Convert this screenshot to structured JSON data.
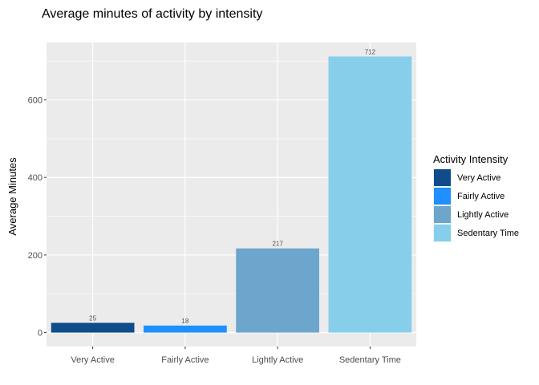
{
  "chart_data": {
    "type": "bar",
    "title": "Average minutes of activity by intensity",
    "xlabel": "",
    "ylabel": "Average Minutes",
    "categories": [
      "Very Active",
      "Fairly Active",
      "Lightly Active",
      "Sedentary Time"
    ],
    "values": [
      25,
      18,
      217,
      712
    ],
    "data_labels": [
      "25",
      "18",
      "217",
      "712"
    ],
    "colors": [
      "#0E4C8A",
      "#1E90FF",
      "#6CA6CD",
      "#87CEEB"
    ],
    "ylim": [
      -36,
      748
    ],
    "yticks": [
      0,
      200,
      400,
      600
    ],
    "ytick_labels": [
      "0",
      "200",
      "400",
      "600"
    ],
    "grid": true,
    "background": "#EBEBEB",
    "legend": {
      "title": "Activity Intensity",
      "placement": "right",
      "items": [
        "Very Active",
        "Fairly Active",
        "Lightly Active",
        "Sedentary Time"
      ]
    }
  }
}
